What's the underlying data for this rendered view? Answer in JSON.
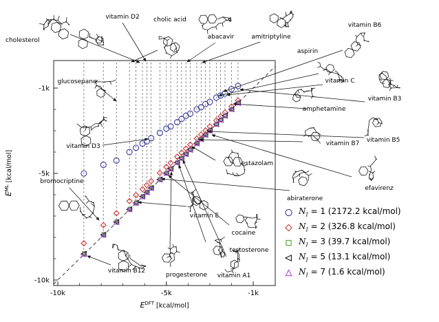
{
  "chart_data": {
    "type": "scatter",
    "title": "",
    "xlabel": "E^DFT [kcal/mol]",
    "ylabel": "E^ML [kcal/mol]",
    "xlabel_parts": {
      "base": "E",
      "sup": "DFT",
      "unit": " [kcal/mol]"
    },
    "ylabel_parts": {
      "base": "E",
      "sup": "ML",
      "unit": " [kcal/mol]"
    },
    "xlim": [
      -10200,
      0
    ],
    "ylim": [
      -10300,
      300
    ],
    "x_ticks": [
      {
        "v": -10000,
        "label": "-10k"
      },
      {
        "v": -5000,
        "label": "-5k"
      },
      {
        "v": -1000,
        "label": "-1k"
      }
    ],
    "y_ticks": [
      {
        "v": -1000,
        "label": "-1k"
      },
      {
        "v": -5000,
        "label": "-5k"
      },
      {
        "v": -10000,
        "label": "-10k"
      }
    ],
    "minor_tick_step": 1000,
    "diagonal": "y = x dashed identity line",
    "grid": false,
    "legend_position": "lower-right",
    "series": [
      {
        "n": 1,
        "marker": "circle",
        "color": "#3a3a9e",
        "mae": "2172.2",
        "legend_label": "N_I = 1 (2172.2 kcal/mol)"
      },
      {
        "n": 2,
        "marker": "diamond",
        "color": "#cc3333",
        "mae": "326.8",
        "legend_label": "N_I = 2 (326.8 kcal/mol)"
      },
      {
        "n": 3,
        "marker": "square",
        "color": "#4fa32f",
        "mae": "39.7",
        "legend_label": "N_I = 3 (39.7 kcal/mol)"
      },
      {
        "n": 5,
        "marker": "triangle-left",
        "color": "#1a1a1a",
        "mae": "13.1",
        "legend_label": "N_I = 5 (13.1 kcal/mol)"
      },
      {
        "n": 7,
        "marker": "triangle-up",
        "color": "#a94ad0",
        "mae": "1.6",
        "legend_label": "N_I = 7 (1.6 kcal/mol)"
      }
    ],
    "molecules": [
      {
        "name": "vitamin B12",
        "e_dft": -8800,
        "e_ml": {
          "1": -5000,
          "2": -8280,
          "3": -8735,
          "5": -8778,
          "7": -8797
        }
      },
      {
        "name": "bromocriptine",
        "e_dft": -7900,
        "e_ml": {
          "1": -4600,
          "2": -7430,
          "3": -7842,
          "5": -7881,
          "7": -7898
        }
      },
      {
        "name": "glucosepane",
        "e_dft": -7300,
        "e_ml": {
          "1": -4400,
          "2": -6870,
          "3": -7248,
          "5": -7283,
          "7": -7298
        }
      },
      {
        "name": "cholic acid",
        "e_dft": -6700,
        "e_ml": {
          "1": -4000,
          "2": -6300,
          "3": -6652,
          "5": -6684,
          "7": -6698
        }
      },
      {
        "name": "vitamin E",
        "e_dft": -6400,
        "e_ml": {
          "1": -3800,
          "2": -6020,
          "3": -6354,
          "5": -6385,
          "7": -6398
        }
      },
      {
        "name": "cholesterol",
        "e_dft": -6100,
        "e_ml": {
          "1": -3600,
          "2": -5740,
          "3": -6056,
          "5": -6085,
          "7": -6098
        }
      },
      {
        "name": "vitamin D2",
        "e_dft": -5900,
        "e_ml": {
          "1": -3500,
          "2": -5550,
          "3": -5858,
          "5": -5886,
          "7": -5898
        }
      },
      {
        "name": "vitamin D3",
        "e_dft": -5700,
        "e_ml": {
          "1": -3350,
          "2": -5360,
          "3": -5659,
          "5": -5686,
          "7": -5698
        }
      },
      {
        "name": "abiraterone",
        "e_dft": -5300,
        "e_ml": {
          "1": -3100,
          "2": -4980,
          "3": -5261,
          "5": -5287,
          "7": -5298
        }
      },
      {
        "name": "cocaine",
        "e_dft": -5000,
        "e_ml": {
          "1": -2900,
          "2": -4700,
          "3": -4963,
          "5": -4988,
          "7": -4998
        }
      },
      {
        "name": "progesterone",
        "e_dft": -4800,
        "e_ml": {
          "1": -2800,
          "2": -4510,
          "3": -4764,
          "5": -4788,
          "7": -4798
        }
      },
      {
        "name": "testosterone",
        "e_dft": -4500,
        "e_ml": {
          "1": -2600,
          "2": -4220,
          "3": -4466,
          "5": -4489,
          "7": -4498
        }
      },
      {
        "name": "vitamin A1",
        "e_dft": -4300,
        "e_ml": {
          "1": -2450,
          "2": -4030,
          "3": -4267,
          "5": -4289,
          "7": -4298
        }
      },
      {
        "name": "abacavir",
        "e_dft": -4100,
        "e_ml": {
          "1": -2300,
          "2": -3840,
          "3": -4068,
          "5": -4090,
          "7": -4099
        }
      },
      {
        "name": "estazolam",
        "e_dft": -3900,
        "e_ml": {
          "1": -2200,
          "2": -3650,
          "3": -3869,
          "5": -3890,
          "7": -3899
        }
      },
      {
        "name": "vitamin B7",
        "e_dft": -3600,
        "e_ml": {
          "1": -2000,
          "2": -3370,
          "3": -3571,
          "5": -3591,
          "7": -3599
        }
      },
      {
        "name": "amitriptyline",
        "e_dft": -3400,
        "e_ml": {
          "1": -1900,
          "2": -3180,
          "3": -3373,
          "5": -3391,
          "7": -3399
        }
      },
      {
        "name": "vitamin B5",
        "e_dft": -3200,
        "e_ml": {
          "1": -1750,
          "2": -2990,
          "3": -3174,
          "5": -3192,
          "7": -3199
        }
      },
      {
        "name": "efavirenz",
        "e_dft": -3000,
        "e_ml": {
          "1": -1650,
          "2": -2800,
          "3": -2975,
          "5": -2992,
          "7": -2999
        }
      },
      {
        "name": "aspirin",
        "e_dft": -2700,
        "e_ml": {
          "1": -1450,
          "2": -2520,
          "3": -2677,
          "5": -2693,
          "7": -2699
        }
      },
      {
        "name": "vitamin B6",
        "e_dft": -2500,
        "e_ml": {
          "1": -1350,
          "2": -2330,
          "3": -2479,
          "5": -2493,
          "7": -2499
        }
      },
      {
        "name": "vitamin C",
        "e_dft": -2300,
        "e_ml": {
          "1": -1250,
          "2": -2140,
          "3": -2280,
          "5": -2294,
          "7": -2299
        }
      },
      {
        "name": "amphetamine",
        "e_dft": -2000,
        "e_ml": {
          "1": -1050,
          "2": -1860,
          "3": -1982,
          "5": -1994,
          "7": -1999
        }
      },
      {
        "name": "vitamin B3",
        "e_dft": -1700,
        "e_ml": {
          "1": -900,
          "2": -1580,
          "3": -1685,
          "5": -1695,
          "7": -1699
        }
      }
    ]
  },
  "legend_tokens": {
    "var": "N",
    "sub": "I",
    "eq": " = ",
    "open": " (",
    "close": " kcal/mol)"
  },
  "annotations": [
    {
      "name": "cholesterol",
      "label": [
        8,
        61
      ],
      "anchor": "start",
      "sketch": [
        88,
        36,
        50
      ],
      "arrow": [
        102,
        50,
        203,
        91
      ]
    },
    {
      "name": "vitamin D2",
      "label": [
        178,
        27
      ],
      "anchor": "middle",
      "sketch": [
        128,
        48,
        48
      ],
      "arrow": [
        178,
        33,
        212,
        89
      ]
    },
    {
      "name": "cholic acid",
      "label": [
        247,
        31
      ],
      "anchor": "middle",
      "sketch": [
        250,
        62,
        46
      ],
      "arrow": [
        229,
        73,
        191,
        90
      ]
    },
    {
      "name": "abacavir",
      "label": [
        321,
        56
      ],
      "anchor": "middle",
      "sketch": [
        314,
        28,
        44
      ],
      "arrow": [
        313,
        62,
        272,
        90
      ]
    },
    {
      "name": "amitriptyline",
      "label": [
        394,
        56
      ],
      "anchor": "middle",
      "sketch": [
        404,
        25,
        44
      ],
      "arrow": [
        378,
        61,
        294,
        91
      ]
    },
    {
      "name": "vitamin B6",
      "label": [
        530,
        39
      ],
      "anchor": "middle",
      "sketch": [
        523,
        66,
        46
      ],
      "arrow": [
        498,
        73,
        325,
        133
      ]
    },
    {
      "name": "aspirin",
      "label": [
        447,
        77
      ],
      "anchor": "middle",
      "sketch": [
        485,
        103,
        40
      ],
      "arrow": [
        463,
        107,
        318,
        139
      ]
    },
    {
      "name": "vitamin C",
      "label": [
        494,
        120
      ],
      "anchor": "middle",
      "sketch": null,
      "arrow": [
        469,
        123,
        330,
        138
      ]
    },
    {
      "name": "vitamin B3",
      "label": [
        559,
        146
      ],
      "anchor": "middle",
      "sketch": [
        564,
        113,
        42
      ],
      "arrow": [
        530,
        148,
        349,
        130
      ]
    },
    {
      "name": "glucosepane",
      "label": [
        112,
        121
      ],
      "anchor": "middle",
      "sketch": [
        152,
        132,
        42
      ],
      "arrow": [
        141,
        124,
        169,
        147
      ]
    },
    {
      "name": "amphetamine",
      "label": [
        471,
        161
      ],
      "anchor": "middle",
      "sketch": [
        436,
        141,
        38
      ],
      "arrow": [
        446,
        158,
        339,
        151
      ]
    },
    {
      "name": "vitamin D3",
      "label": [
        121,
        215
      ],
      "anchor": "middle",
      "sketch": [
        130,
        189,
        50
      ],
      "arrow": [
        149,
        211,
        215,
        202
      ]
    },
    {
      "name": "vitamin B7",
      "label": [
        498,
        211
      ],
      "anchor": "middle",
      "sketch": [
        464,
        196,
        44
      ],
      "arrow": [
        440,
        206,
        290,
        203
      ]
    },
    {
      "name": "vitamin B5",
      "label": [
        557,
        206
      ],
      "anchor": "middle",
      "sketch": [
        554,
        180,
        44
      ],
      "arrow": [
        529,
        200,
        302,
        191
      ]
    },
    {
      "name": "estazolam",
      "label": [
        374,
        240
      ],
      "anchor": "middle",
      "sketch": [
        338,
        238,
        46
      ],
      "arrow": [
        313,
        233,
        279,
        213
      ]
    },
    {
      "name": "efavirenz",
      "label": [
        551,
        276
      ],
      "anchor": "middle",
      "sketch": [
        534,
        249,
        44
      ],
      "arrow": [
        511,
        257,
        308,
        196
      ]
    },
    {
      "name": "abiraterone",
      "label": [
        443,
        291
      ],
      "anchor": "middle",
      "sketch": [
        446,
        263,
        44
      ],
      "arrow": [
        421,
        277,
        235,
        260
      ]
    },
    {
      "name": "vitamin E",
      "label": [
        297,
        316
      ],
      "anchor": "middle",
      "sketch": [
        291,
        291,
        44
      ],
      "arrow": [
        271,
        300,
        201,
        294
      ]
    },
    {
      "name": "bromocriptine",
      "label": [
        90,
        266
      ],
      "anchor": "middle",
      "sketch": [
        114,
        301,
        50
      ],
      "arrow": [
        101,
        273,
        144,
        320
      ]
    },
    {
      "name": "cocaine",
      "label": [
        354,
        341
      ],
      "anchor": "middle",
      "sketch": [
        354,
        320,
        40
      ],
      "arrow": [
        333,
        327,
        245,
        255
      ]
    },
    {
      "name": "testosterone",
      "label": [
        362,
        366
      ],
      "anchor": "middle",
      "sketch": [
        322,
        361,
        44
      ],
      "arrow": [
        299,
        352,
        260,
        240
      ]
    },
    {
      "name": "vitamin B12",
      "label": [
        184,
        396
      ],
      "anchor": "middle",
      "sketch": [
        186,
        370,
        52
      ],
      "arrow": [
        161,
        385,
        127,
        372
      ]
    },
    {
      "name": "progesterone",
      "label": [
        271,
        402
      ],
      "anchor": "middle",
      "sketch": [
        248,
        376,
        44
      ],
      "arrow": [
        247,
        361,
        249,
        250
      ]
    },
    {
      "name": "vitamin A1",
      "label": [
        340,
        403
      ],
      "anchor": "middle",
      "sketch": [
        346,
        381,
        40
      ],
      "arrow": [
        329,
        373,
        266,
        233
      ]
    }
  ]
}
